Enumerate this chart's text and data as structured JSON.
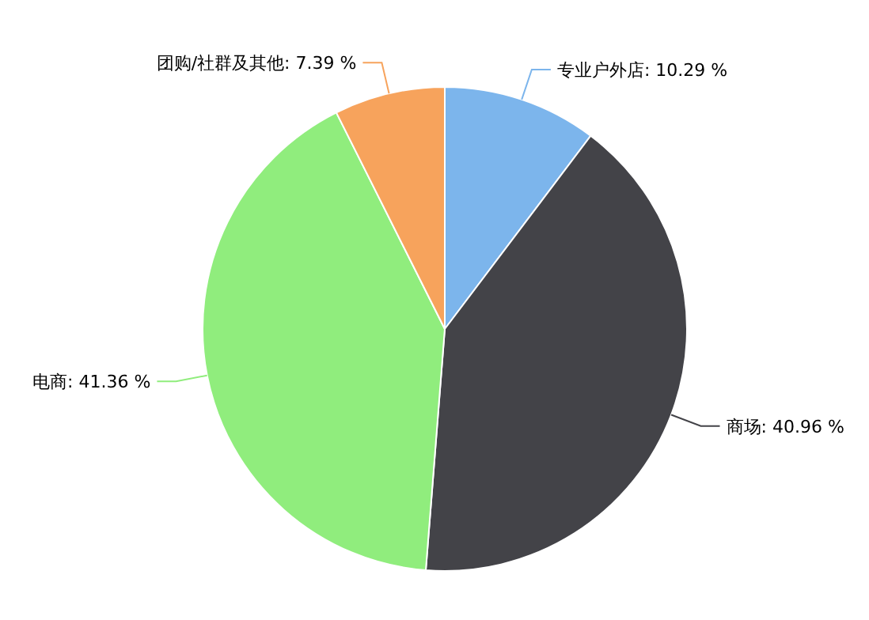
{
  "chart_data": {
    "type": "pie",
    "categories": [
      "专业户外店",
      "商场",
      "电商",
      "团购/社群及其他"
    ],
    "values": [
      10.29,
      40.96,
      41.36,
      7.39
    ],
    "value_labels": [
      "10.29 %",
      "40.96 %",
      "41.36 %",
      "7.39 %"
    ],
    "colors": [
      "#7cb5ec",
      "#434348",
      "#90ed7d",
      "#f7a35c"
    ]
  }
}
